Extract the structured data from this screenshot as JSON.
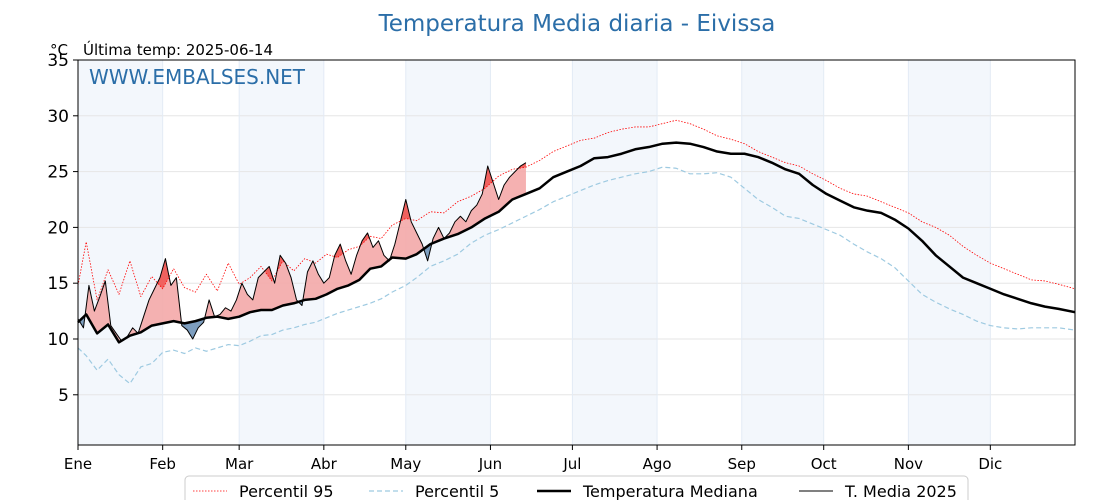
{
  "chart_data": {
    "type": "line",
    "title": "Temperatura Media diaria - Eivissa",
    "unit_label": "°C",
    "subtitle": "Última temp: 2025-06-14",
    "watermark": "WWW.EMBALSES.NET",
    "ylim": [
      0.5,
      35
    ],
    "yticks": [
      5,
      10,
      15,
      20,
      25,
      30,
      35
    ],
    "xlim": [
      1,
      366
    ],
    "months": [
      "Ene",
      "Feb",
      "Mar",
      "Abr",
      "May",
      "Jun",
      "Jul",
      "Ago",
      "Sep",
      "Oct",
      "Nov",
      "Dic"
    ],
    "month_start_days": [
      1,
      32,
      60,
      91,
      121,
      152,
      182,
      213,
      244,
      274,
      305,
      335
    ],
    "grid": true,
    "legend_position": "bottom",
    "series": [
      {
        "name": "Percentil 95",
        "color": "#ff0000",
        "style": "dotted",
        "x": [
          1,
          4,
          8,
          12,
          16,
          20,
          24,
          28,
          32,
          36,
          40,
          44,
          48,
          52,
          56,
          60,
          64,
          68,
          72,
          76,
          80,
          84,
          88,
          92,
          96,
          100,
          104,
          108,
          112,
          116,
          121,
          125,
          130,
          135,
          140,
          145,
          150,
          155,
          160,
          165,
          170,
          175,
          180,
          185,
          190,
          195,
          200,
          205,
          210,
          215,
          220,
          225,
          230,
          235,
          240,
          245,
          250,
          255,
          260,
          265,
          270,
          275,
          280,
          285,
          290,
          295,
          300,
          305,
          310,
          315,
          320,
          325,
          330,
          335,
          340,
          345,
          350,
          355,
          360,
          366
        ],
        "values": [
          14.8,
          18.7,
          13.5,
          16.2,
          14.0,
          17.0,
          13.8,
          15.6,
          14.5,
          16.3,
          14.6,
          14.2,
          15.8,
          14.3,
          16.8,
          14.9,
          15.5,
          16.5,
          15.2,
          17.0,
          16.1,
          17.2,
          16.8,
          17.6,
          17.3,
          18.0,
          18.3,
          19.2,
          19.0,
          20.2,
          20.8,
          20.6,
          21.4,
          21.3,
          22.3,
          22.8,
          23.5,
          24.6,
          25.2,
          25.4,
          26.0,
          26.8,
          27.3,
          27.8,
          28.0,
          28.5,
          28.8,
          29.0,
          29.0,
          29.3,
          29.6,
          29.3,
          28.8,
          28.2,
          27.9,
          27.5,
          26.8,
          26.3,
          25.8,
          25.5,
          24.8,
          24.2,
          23.5,
          23.0,
          22.8,
          22.3,
          21.8,
          21.3,
          20.5,
          20.0,
          19.3,
          18.3,
          17.5,
          16.8,
          16.3,
          15.8,
          15.3,
          15.2,
          14.9,
          14.5
        ]
      },
      {
        "name": "Percentil 5",
        "color": "#9ecae1",
        "style": "dashed",
        "x": [
          1,
          4,
          8,
          12,
          16,
          20,
          24,
          28,
          32,
          36,
          40,
          44,
          48,
          52,
          56,
          60,
          64,
          68,
          72,
          76,
          80,
          84,
          88,
          92,
          96,
          100,
          104,
          108,
          112,
          116,
          121,
          125,
          130,
          135,
          140,
          145,
          150,
          155,
          160,
          165,
          170,
          175,
          180,
          185,
          190,
          195,
          200,
          205,
          210,
          215,
          220,
          225,
          230,
          235,
          240,
          245,
          250,
          255,
          260,
          265,
          270,
          275,
          280,
          285,
          290,
          295,
          300,
          305,
          310,
          315,
          320,
          325,
          330,
          335,
          340,
          345,
          350,
          355,
          360,
          366
        ],
        "values": [
          9.2,
          8.5,
          7.2,
          8.2,
          6.8,
          6.0,
          7.5,
          7.8,
          8.8,
          9.0,
          8.7,
          9.2,
          8.9,
          9.2,
          9.5,
          9.4,
          9.8,
          10.3,
          10.4,
          10.8,
          11.0,
          11.3,
          11.5,
          11.9,
          12.3,
          12.6,
          12.9,
          13.2,
          13.6,
          14.2,
          14.8,
          15.5,
          16.5,
          17.0,
          17.6,
          18.6,
          19.3,
          19.8,
          20.4,
          21.0,
          21.6,
          22.3,
          22.8,
          23.3,
          23.8,
          24.2,
          24.5,
          24.8,
          25.0,
          25.4,
          25.3,
          24.8,
          24.8,
          24.9,
          24.5,
          23.5,
          22.5,
          21.8,
          21.0,
          20.8,
          20.3,
          19.8,
          19.3,
          18.5,
          17.8,
          17.2,
          16.4,
          15.2,
          14.0,
          13.3,
          12.7,
          12.2,
          11.6,
          11.2,
          11.0,
          10.9,
          11.0,
          11.0,
          11.0,
          10.8
        ]
      },
      {
        "name": "Temperatura Mediana",
        "color": "#000000",
        "style": "solid-thick",
        "x": [
          1,
          4,
          8,
          12,
          16,
          20,
          24,
          28,
          32,
          36,
          40,
          44,
          48,
          52,
          56,
          60,
          64,
          68,
          72,
          76,
          80,
          84,
          88,
          92,
          96,
          100,
          104,
          108,
          112,
          116,
          121,
          125,
          130,
          135,
          140,
          145,
          150,
          155,
          160,
          165,
          170,
          175,
          180,
          185,
          190,
          195,
          200,
          205,
          210,
          215,
          220,
          225,
          230,
          235,
          240,
          245,
          250,
          255,
          260,
          265,
          270,
          275,
          280,
          285,
          290,
          295,
          300,
          305,
          310,
          315,
          320,
          325,
          330,
          335,
          340,
          345,
          350,
          355,
          360,
          366
        ],
        "values": [
          11.5,
          12.2,
          10.5,
          11.3,
          9.7,
          10.3,
          10.6,
          11.2,
          11.4,
          11.6,
          11.4,
          11.6,
          11.9,
          12.0,
          11.8,
          12.0,
          12.4,
          12.6,
          12.6,
          13.0,
          13.2,
          13.5,
          13.6,
          14.0,
          14.5,
          14.8,
          15.3,
          16.3,
          16.5,
          17.3,
          17.2,
          17.6,
          18.5,
          19.0,
          19.4,
          20.0,
          20.8,
          21.4,
          22.5,
          23.0,
          23.5,
          24.5,
          25.0,
          25.5,
          26.2,
          26.3,
          26.6,
          27.0,
          27.2,
          27.5,
          27.6,
          27.5,
          27.2,
          26.8,
          26.6,
          26.6,
          26.3,
          25.8,
          25.2,
          24.8,
          23.8,
          23.0,
          22.4,
          21.8,
          21.5,
          21.3,
          20.7,
          19.9,
          18.8,
          17.5,
          16.5,
          15.5,
          15.0,
          14.5,
          14.0,
          13.6,
          13.2,
          12.9,
          12.7,
          12.4
        ]
      },
      {
        "name": "T. Media 2025",
        "color": "#000000",
        "style": "solid-thin",
        "x": [
          1,
          3,
          5,
          7,
          9,
          11,
          13,
          15,
          17,
          19,
          21,
          23,
          25,
          27,
          29,
          31,
          33,
          35,
          37,
          39,
          41,
          43,
          45,
          47,
          49,
          51,
          53,
          55,
          57,
          59,
          61,
          63,
          65,
          67,
          69,
          71,
          73,
          75,
          77,
          79,
          81,
          83,
          85,
          87,
          89,
          91,
          93,
          95,
          97,
          99,
          101,
          103,
          105,
          107,
          109,
          111,
          113,
          115,
          117,
          119,
          121,
          123,
          125,
          127,
          129,
          131,
          133,
          135,
          137,
          139,
          141,
          143,
          145,
          147,
          149,
          151,
          153,
          155,
          157,
          159,
          161,
          163,
          165
        ],
        "values": [
          11.8,
          11.0,
          14.8,
          12.5,
          13.8,
          15.2,
          11.2,
          10.5,
          9.8,
          10.2,
          11.0,
          10.5,
          12.0,
          13.5,
          14.5,
          15.5,
          17.2,
          14.8,
          15.5,
          11.2,
          10.8,
          10.0,
          11.0,
          11.5,
          13.5,
          12.0,
          12.2,
          12.8,
          12.5,
          13.5,
          15.0,
          14.0,
          13.5,
          15.5,
          16.0,
          16.5,
          15.0,
          17.5,
          16.8,
          15.5,
          13.5,
          13.0,
          16.0,
          17.0,
          15.8,
          15.0,
          15.5,
          17.5,
          18.5,
          17.0,
          15.8,
          17.5,
          18.8,
          19.5,
          18.2,
          18.8,
          17.5,
          17.0,
          18.5,
          20.5,
          22.5,
          20.5,
          19.5,
          18.5,
          17.0,
          19.0,
          20.0,
          19.0,
          19.5,
          20.5,
          21.0,
          20.5,
          21.5,
          22.0,
          23.0,
          25.5,
          24.0,
          22.5,
          23.8,
          24.5,
          25.0,
          25.5,
          25.8
        ]
      }
    ]
  }
}
